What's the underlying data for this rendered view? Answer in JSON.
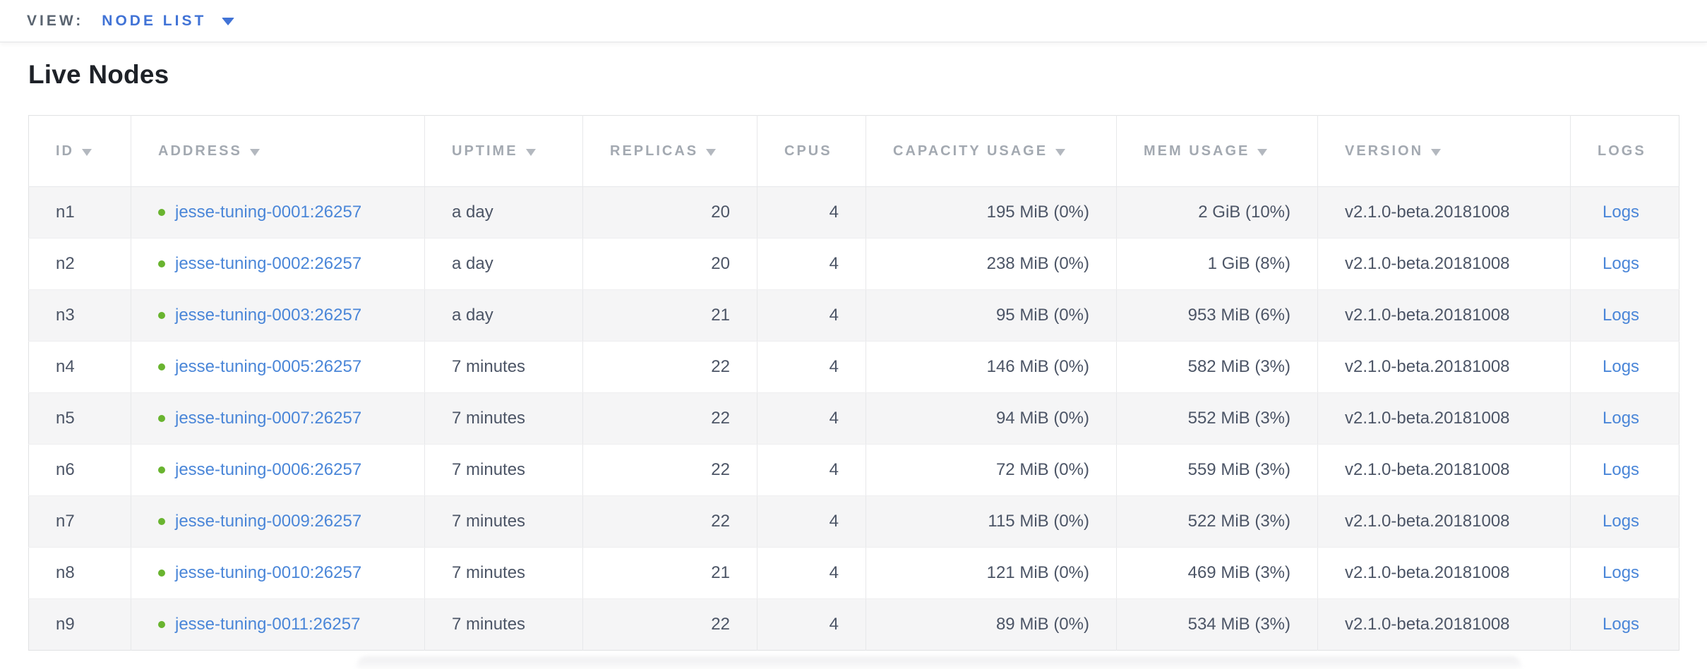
{
  "topbar": {
    "view_label": "VIEW:",
    "view_value": "NODE LIST"
  },
  "page": {
    "title": "Live Nodes"
  },
  "table": {
    "columns": [
      {
        "key": "id",
        "label": "ID",
        "sortable": true
      },
      {
        "key": "address",
        "label": "ADDRESS",
        "sortable": true
      },
      {
        "key": "uptime",
        "label": "UPTIME",
        "sortable": true
      },
      {
        "key": "replicas",
        "label": "REPLICAS",
        "sortable": true
      },
      {
        "key": "cpus",
        "label": "CPUS",
        "sortable": false
      },
      {
        "key": "capacity",
        "label": "CAPACITY USAGE",
        "sortable": true
      },
      {
        "key": "mem",
        "label": "MEM USAGE",
        "sortable": true
      },
      {
        "key": "version",
        "label": "VERSION",
        "sortable": true
      },
      {
        "key": "logs",
        "label": "LOGS",
        "sortable": false
      }
    ],
    "rows": [
      {
        "id": "n1",
        "status": "live",
        "address": "jesse-tuning-0001:26257",
        "uptime": "a day",
        "replicas": "20",
        "cpus": "4",
        "capacity": "195 MiB (0%)",
        "mem": "2 GiB (10%)",
        "version": "v2.1.0-beta.20181008",
        "logs": "Logs"
      },
      {
        "id": "n2",
        "status": "live",
        "address": "jesse-tuning-0002:26257",
        "uptime": "a day",
        "replicas": "20",
        "cpus": "4",
        "capacity": "238 MiB (0%)",
        "mem": "1 GiB (8%)",
        "version": "v2.1.0-beta.20181008",
        "logs": "Logs"
      },
      {
        "id": "n3",
        "status": "live",
        "address": "jesse-tuning-0003:26257",
        "uptime": "a day",
        "replicas": "21",
        "cpus": "4",
        "capacity": "95 MiB (0%)",
        "mem": "953 MiB (6%)",
        "version": "v2.1.0-beta.20181008",
        "logs": "Logs"
      },
      {
        "id": "n4",
        "status": "live",
        "address": "jesse-tuning-0005:26257",
        "uptime": "7 minutes",
        "replicas": "22",
        "cpus": "4",
        "capacity": "146 MiB (0%)",
        "mem": "582 MiB (3%)",
        "version": "v2.1.0-beta.20181008",
        "logs": "Logs"
      },
      {
        "id": "n5",
        "status": "live",
        "address": "jesse-tuning-0007:26257",
        "uptime": "7 minutes",
        "replicas": "22",
        "cpus": "4",
        "capacity": "94 MiB (0%)",
        "mem": "552 MiB (3%)",
        "version": "v2.1.0-beta.20181008",
        "logs": "Logs"
      },
      {
        "id": "n6",
        "status": "live",
        "address": "jesse-tuning-0006:26257",
        "uptime": "7 minutes",
        "replicas": "22",
        "cpus": "4",
        "capacity": "72 MiB (0%)",
        "mem": "559 MiB (3%)",
        "version": "v2.1.0-beta.20181008",
        "logs": "Logs"
      },
      {
        "id": "n7",
        "status": "live",
        "address": "jesse-tuning-0009:26257",
        "uptime": "7 minutes",
        "replicas": "22",
        "cpus": "4",
        "capacity": "115 MiB (0%)",
        "mem": "522 MiB (3%)",
        "version": "v2.1.0-beta.20181008",
        "logs": "Logs"
      },
      {
        "id": "n8",
        "status": "live",
        "address": "jesse-tuning-0010:26257",
        "uptime": "7 minutes",
        "replicas": "21",
        "cpus": "4",
        "capacity": "121 MiB (0%)",
        "mem": "469 MiB (3%)",
        "version": "v2.1.0-beta.20181008",
        "logs": "Logs"
      },
      {
        "id": "n9",
        "status": "live",
        "address": "jesse-tuning-0011:26257",
        "uptime": "7 minutes",
        "replicas": "22",
        "cpus": "4",
        "capacity": "89 MiB (0%)",
        "mem": "534 MiB (3%)",
        "version": "v2.1.0-beta.20181008",
        "logs": "Logs"
      }
    ]
  },
  "colors": {
    "link_blue": "#4a86d8",
    "accent_blue": "#4173d6",
    "status_green_live": "#69b42f",
    "cell_text": "#4c5566",
    "header_text": "#a3a9b1",
    "row_alternate_bg": "#f5f5f6"
  }
}
